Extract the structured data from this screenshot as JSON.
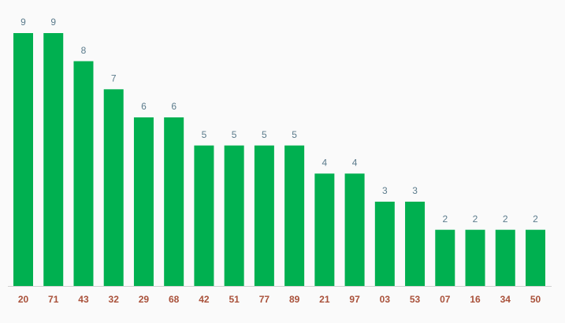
{
  "chart_data": {
    "type": "bar",
    "categories": [
      "20",
      "71",
      "43",
      "32",
      "29",
      "68",
      "42",
      "51",
      "77",
      "89",
      "21",
      "97",
      "03",
      "53",
      "07",
      "16",
      "34",
      "50"
    ],
    "values": [
      9,
      9,
      8,
      7,
      6,
      6,
      5,
      5,
      5,
      5,
      4,
      4,
      3,
      3,
      2,
      2,
      2,
      2
    ],
    "color": "#00b050"
  }
}
